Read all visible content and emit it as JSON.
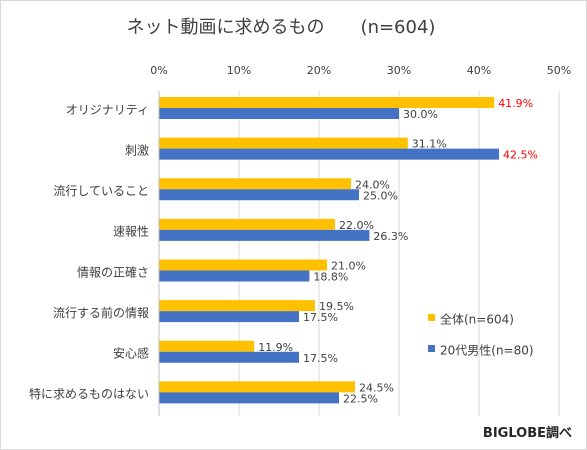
{
  "title": "ネット動画に求めるもの　　(n=604)",
  "credit": "BIGLOBE調べ",
  "colors": {
    "series_all": "#ffc000",
    "series_men20s": "#4472c4",
    "highlight_label": "#ff0000",
    "label": "#404040",
    "gridline": "#d9d9d9"
  },
  "chart_data": {
    "type": "bar",
    "orientation": "horizontal",
    "title": "ネット動画に求めるもの　　(n=604)",
    "categories": [
      "オリジナリティ",
      "刺激",
      "流行していること",
      "速報性",
      "情報の正確さ",
      "流行する前の情報",
      "安心感",
      "特に求めるものはない"
    ],
    "series": [
      {
        "name": "全体(n=604)",
        "color": "#ffc000",
        "values": [
          41.9,
          31.1,
          24.0,
          22.0,
          21.0,
          19.5,
          11.9,
          24.5
        ],
        "labels": [
          "41.9%",
          "31.1%",
          "24.0%",
          "22.0%",
          "21.0%",
          "19.5%",
          "11.9%",
          "24.5%"
        ],
        "highlight": [
          true,
          false,
          false,
          false,
          false,
          false,
          false,
          false
        ]
      },
      {
        "name": "20代男性(n=80)",
        "color": "#4472c4",
        "values": [
          30.0,
          42.5,
          25.0,
          26.3,
          18.8,
          17.5,
          17.5,
          22.5
        ],
        "labels": [
          "30.0%",
          "42.5%",
          "25.0%",
          "26.3%",
          "18.8%",
          "17.5%",
          "17.5%",
          "22.5%"
        ],
        "highlight": [
          false,
          true,
          false,
          false,
          false,
          false,
          false,
          false
        ]
      }
    ],
    "x_ticks": [
      "0%",
      "10%",
      "20%",
      "30%",
      "40%",
      "50%"
    ],
    "xlim": [
      0,
      50
    ],
    "x_axis_position": "top",
    "grid": true,
    "legend_position": "right"
  }
}
